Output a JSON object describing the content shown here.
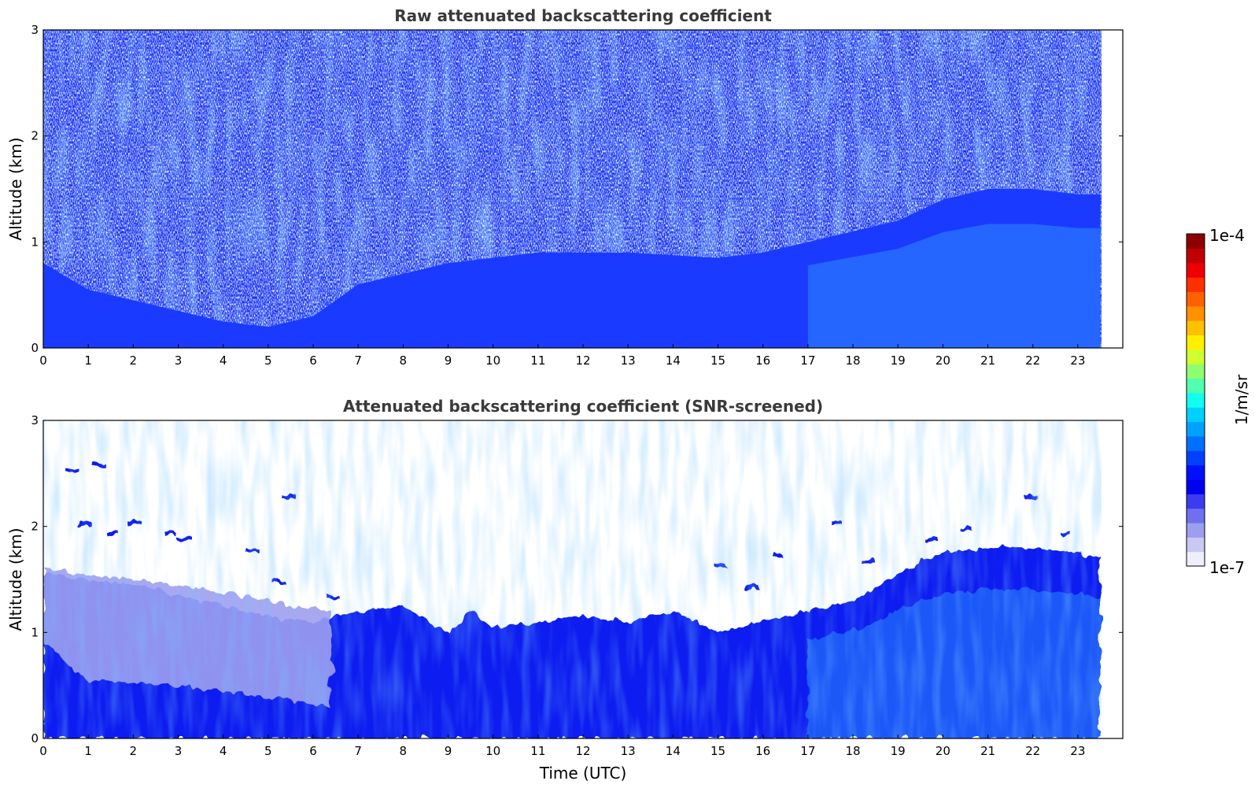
{
  "chart_data": [
    {
      "type": "heatmap",
      "title": "Raw attenuated backscattering coefficient",
      "xlabel": "",
      "ylabel": "Altitude (km)",
      "xlim": [
        0,
        24
      ],
      "ylim": [
        0,
        3
      ],
      "x_ticks": [
        "0",
        "1",
        "2",
        "3",
        "4",
        "5",
        "6",
        "7",
        "8",
        "9",
        "10",
        "11",
        "12",
        "13",
        "14",
        "15",
        "16",
        "17",
        "18",
        "19",
        "20",
        "21",
        "22",
        "23"
      ],
      "y_ticks": [
        "0",
        "1",
        "2",
        "3"
      ],
      "data_x_extent": [
        0,
        23.5
      ],
      "dense_layer_top_km": [
        {
          "t": 0,
          "z": 0.8
        },
        {
          "t": 1,
          "z": 0.55
        },
        {
          "t": 2,
          "z": 0.45
        },
        {
          "t": 3,
          "z": 0.35
        },
        {
          "t": 4,
          "z": 0.25
        },
        {
          "t": 5,
          "z": 0.2
        },
        {
          "t": 6,
          "z": 0.3
        },
        {
          "t": 7,
          "z": 0.6
        },
        {
          "t": 9,
          "z": 0.8
        },
        {
          "t": 11,
          "z": 0.9
        },
        {
          "t": 13,
          "z": 0.9
        },
        {
          "t": 15,
          "z": 0.85
        },
        {
          "t": 16,
          "z": 0.9
        },
        {
          "t": 17,
          "z": 1.0
        },
        {
          "t": 18,
          "z": 1.1
        },
        {
          "t": 19,
          "z": 1.2
        },
        {
          "t": 20,
          "z": 1.4
        },
        {
          "t": 21,
          "z": 1.5
        },
        {
          "t": 22,
          "z": 1.5
        },
        {
          "t": 23,
          "z": 1.45
        },
        {
          "t": 23.5,
          "z": 1.45
        }
      ],
      "noise": true,
      "grid": false
    },
    {
      "type": "heatmap",
      "title": "Attenuated backscattering coefficient (SNR-screened)",
      "xlabel": "Time (UTC)",
      "ylabel": "Altitude (km)",
      "xlim": [
        0,
        24
      ],
      "ylim": [
        0,
        3
      ],
      "x_ticks": [
        "0",
        "1",
        "2",
        "3",
        "4",
        "5",
        "6",
        "7",
        "8",
        "9",
        "10",
        "11",
        "12",
        "13",
        "14",
        "15",
        "16",
        "17",
        "18",
        "19",
        "20",
        "21",
        "22",
        "23"
      ],
      "y_ticks": [
        "0",
        "1",
        "2",
        "3"
      ],
      "data_x_extent": [
        0,
        23.5
      ],
      "dense_layer_top_km": [
        {
          "t": 0,
          "z": 1.55
        },
        {
          "t": 1,
          "z": 1.5
        },
        {
          "t": 2,
          "z": 1.45
        },
        {
          "t": 3,
          "z": 1.35
        },
        {
          "t": 4,
          "z": 1.25
        },
        {
          "t": 5,
          "z": 1.15
        },
        {
          "t": 6,
          "z": 1.1
        },
        {
          "t": 6.5,
          "z": 1.15
        },
        {
          "t": 7,
          "z": 1.2
        },
        {
          "t": 8,
          "z": 1.25
        },
        {
          "t": 9,
          "z": 1.0
        },
        {
          "t": 9.5,
          "z": 1.2
        },
        {
          "t": 10,
          "z": 1.05
        },
        {
          "t": 11,
          "z": 1.1
        },
        {
          "t": 12,
          "z": 1.15
        },
        {
          "t": 13,
          "z": 1.1
        },
        {
          "t": 14,
          "z": 1.2
        },
        {
          "t": 15,
          "z": 1.0
        },
        {
          "t": 16,
          "z": 1.1
        },
        {
          "t": 17,
          "z": 1.2
        },
        {
          "t": 18,
          "z": 1.3
        },
        {
          "t": 19,
          "z": 1.55
        },
        {
          "t": 20,
          "z": 1.75
        },
        {
          "t": 21,
          "z": 1.8
        },
        {
          "t": 22,
          "z": 1.8
        },
        {
          "t": 23,
          "z": 1.75
        },
        {
          "t": 23.5,
          "z": 1.7
        }
      ],
      "pale_region": {
        "t_range": [
          0,
          6.4
        ],
        "z_range": [
          0.1,
          1.6
        ]
      },
      "noise": false,
      "grid": false
    }
  ],
  "colorbar": {
    "label": "1/m/sr",
    "max_label": "1e-4",
    "min_label": "1e-7",
    "scale": "log",
    "range": [
      1e-07,
      0.0001
    ],
    "colormap": "jet",
    "colors": [
      "#efeffb",
      "#c9c9f3",
      "#9e9ef0",
      "#6f6ff0",
      "#3b3bf0",
      "#0000f0",
      "#0010ff",
      "#0040ff",
      "#0070ff",
      "#00a0ff",
      "#00d0ff",
      "#10ffef",
      "#50ffaf",
      "#90ff6f",
      "#cfff30",
      "#ffef00",
      "#ffc000",
      "#ff9000",
      "#ff6000",
      "#ff3000",
      "#ef0000",
      "#c00000",
      "#8f0000"
    ]
  },
  "palette": {
    "deep_blue": "#0a1ef0",
    "mid_blue": "#1a3bff",
    "light_blue": "#2e8bff",
    "pale_blue": "#9e9ef0",
    "title_color": "#3a3a3a"
  }
}
